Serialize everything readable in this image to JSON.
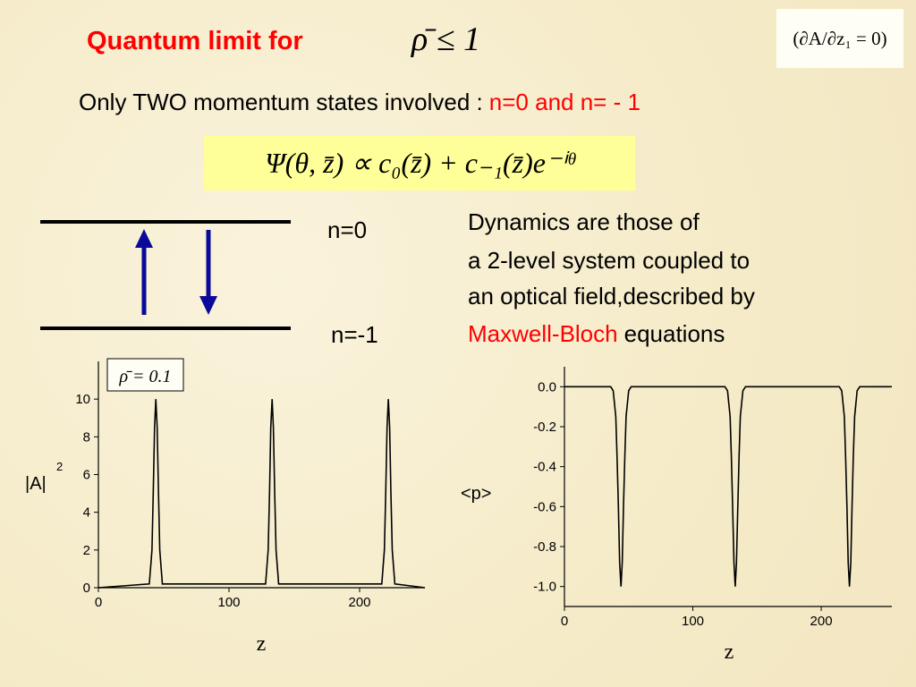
{
  "title": "Quantum limit for",
  "title_formula": "ρ̄ ≤ 1",
  "boundary_condition": "(∂A/∂z₁ = 0)",
  "subtitle": "Only TWO momentum states involved :",
  "subtitle_highlight": "n=0 and n= - 1",
  "wavefunction": "Ψ(θ, z̄) ∝ c₀(z̄) + c₋₁(z̄)e⁻ⁱᶿ",
  "levels": [
    "n=0",
    "n=-1"
  ],
  "description": {
    "lines": [
      "Dynamics are those of",
      "a 2-level system coupled to",
      "an optical field,described by"
    ],
    "highlight": "Maxwell-Bloch",
    "tail": "equations"
  },
  "chart_data": [
    {
      "type": "line",
      "annotation": "ρ̄ = 0.1",
      "ylabel": "|A|",
      "ylabel_superscript": "2",
      "xlabel": "z",
      "x": [
        0,
        39,
        41,
        42,
        43,
        44,
        45,
        46,
        47,
        49,
        128,
        130,
        131,
        132,
        133,
        134,
        135,
        136,
        138,
        217,
        219,
        220,
        221,
        222,
        223,
        224,
        225,
        227,
        250
      ],
      "series": [
        {
          "color": "#000000",
          "values": [
            0,
            0.2,
            2,
            5,
            8.5,
            10,
            8.5,
            5,
            2,
            0.2,
            0.2,
            2,
            5,
            8.5,
            10,
            8.5,
            5,
            2,
            0.2,
            0.2,
            2,
            5,
            8.5,
            10,
            8.5,
            5,
            2,
            0.2,
            0
          ]
        }
      ],
      "xlim": [
        0,
        250
      ],
      "ylim": [
        0,
        12
      ],
      "xticks": [
        0,
        100,
        200
      ],
      "yticks": [
        0,
        2,
        4,
        6,
        8,
        10
      ]
    },
    {
      "type": "line",
      "ylabel": "<p>",
      "xlabel": "z",
      "x": [
        0,
        36,
        38,
        40,
        41,
        42,
        43,
        44,
        45,
        46,
        47,
        48,
        50,
        52,
        125,
        127,
        129,
        130,
        131,
        132,
        133,
        134,
        135,
        136,
        137,
        139,
        141,
        214,
        216,
        218,
        219,
        220,
        221,
        222,
        223,
        224,
        225,
        226,
        228,
        230,
        255
      ],
      "series": [
        {
          "color": "#000000",
          "values": [
            0,
            0,
            -0.02,
            -0.15,
            -0.35,
            -0.6,
            -0.88,
            -1,
            -0.88,
            -0.6,
            -0.35,
            -0.15,
            -0.02,
            0,
            0,
            -0.02,
            -0.15,
            -0.35,
            -0.6,
            -0.88,
            -1,
            -0.88,
            -0.6,
            -0.35,
            -0.15,
            -0.02,
            0,
            0,
            -0.02,
            -0.15,
            -0.35,
            -0.6,
            -0.88,
            -1,
            -0.88,
            -0.6,
            -0.35,
            -0.15,
            -0.02,
            0,
            0
          ]
        }
      ],
      "xlim": [
        0,
        255
      ],
      "ylim": [
        -1.1,
        0.1
      ],
      "xticks": [
        0,
        100,
        200
      ],
      "yticks": [
        {
          "value": 0,
          "label": "0.0"
        },
        -0.2,
        -0.4,
        -0.6,
        -0.8,
        {
          "value": -1,
          "label": "-1.0"
        }
      ]
    }
  ]
}
